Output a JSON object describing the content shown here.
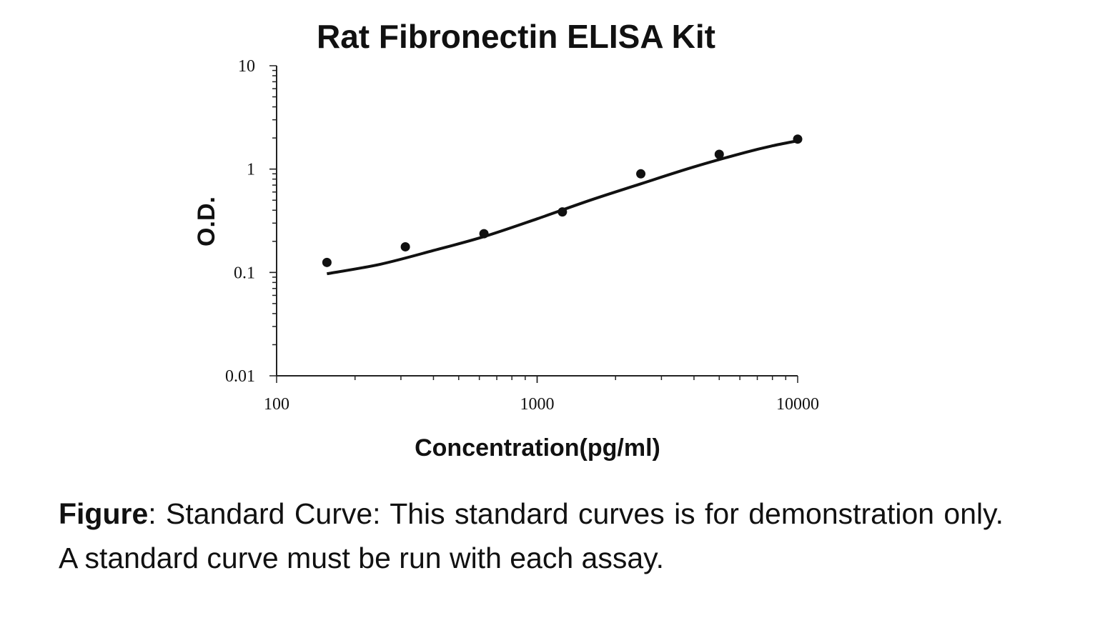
{
  "chart_data": {
    "type": "scatter",
    "title": "Rat Fibronectin ELISA Kit",
    "xlabel": "Concentration(pg/ml)",
    "ylabel": "O.D.",
    "xscale": "log",
    "yscale": "log",
    "xlim": [
      100,
      10000
    ],
    "ylim": [
      0.01,
      10
    ],
    "x_ticks": [
      {
        "value": 100,
        "label": "100"
      },
      {
        "value": 1000,
        "label": "1000"
      },
      {
        "value": 10000,
        "label": "10000"
      }
    ],
    "y_ticks": [
      {
        "value": 0.01,
        "label": "0.01"
      },
      {
        "value": 0.1,
        "label": "0.1"
      },
      {
        "value": 1,
        "label": "1"
      },
      {
        "value": 10,
        "label": "10"
      }
    ],
    "series": [
      {
        "x": [
          156,
          312,
          625,
          1250,
          2500,
          5000,
          10000
        ],
        "y": [
          0.125,
          0.177,
          0.237,
          0.385,
          0.9,
          1.39,
          1.95
        ]
      }
    ],
    "fit_curve": {
      "x": [
        156,
        250,
        400,
        625,
        1000,
        1600,
        2500,
        4000,
        6300,
        8000,
        10000
      ],
      "y": [
        0.097,
        0.12,
        0.163,
        0.222,
        0.33,
        0.5,
        0.72,
        1.05,
        1.45,
        1.68,
        1.88
      ]
    },
    "grid": false,
    "legend": "none"
  },
  "caption": {
    "bold_label": "Figure",
    "text": ":  Standard Curve: This standard curves is for demonstration only. A standard curve must be run with each assay."
  }
}
